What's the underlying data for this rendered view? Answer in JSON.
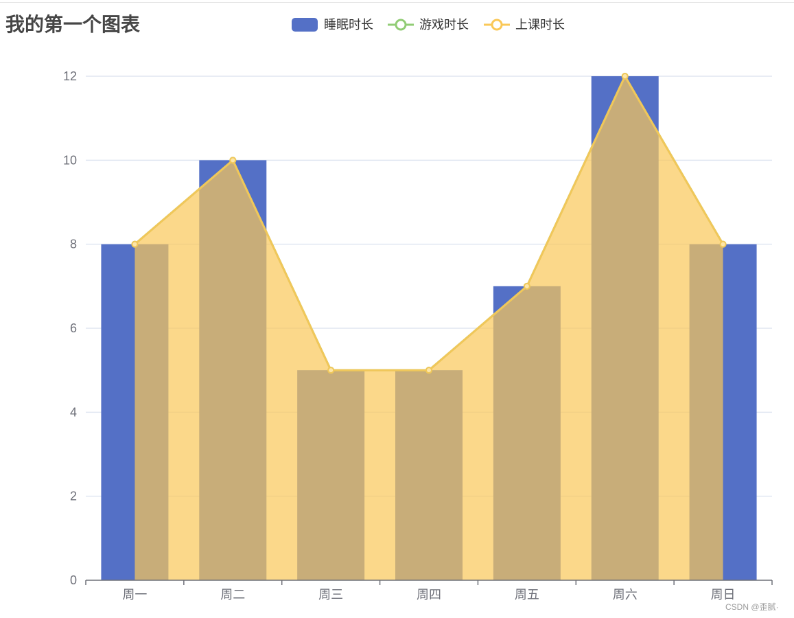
{
  "chart_data": {
    "type": "bar",
    "title": "我的第一个图表",
    "categories": [
      "周一",
      "周二",
      "周三",
      "周四",
      "周五",
      "周六",
      "周日"
    ],
    "ylim": [
      0,
      12
    ],
    "yticks": [
      0,
      2,
      4,
      6,
      8,
      10,
      12
    ],
    "grid": true,
    "legend_position": "top-center",
    "xlabel": "",
    "ylabel": "",
    "series": [
      {
        "name": "睡眠时长",
        "type": "bar",
        "color": "#5470c6",
        "values": [
          8,
          10,
          5,
          5,
          7,
          12,
          8
        ]
      },
      {
        "name": "游戏时长",
        "type": "line",
        "color": "#91cc75",
        "values": [
          8,
          10,
          5,
          5,
          7,
          12,
          8
        ]
      },
      {
        "name": "上课时长",
        "type": "area",
        "color": "#fac858",
        "values": [
          8,
          10,
          5,
          5,
          7,
          12,
          8
        ]
      }
    ]
  },
  "colors": {
    "axis": "#6e7079",
    "grid": "#e0e6f1",
    "area_fill": "#fac858"
  },
  "watermark": "CSDN @歪腻·"
}
